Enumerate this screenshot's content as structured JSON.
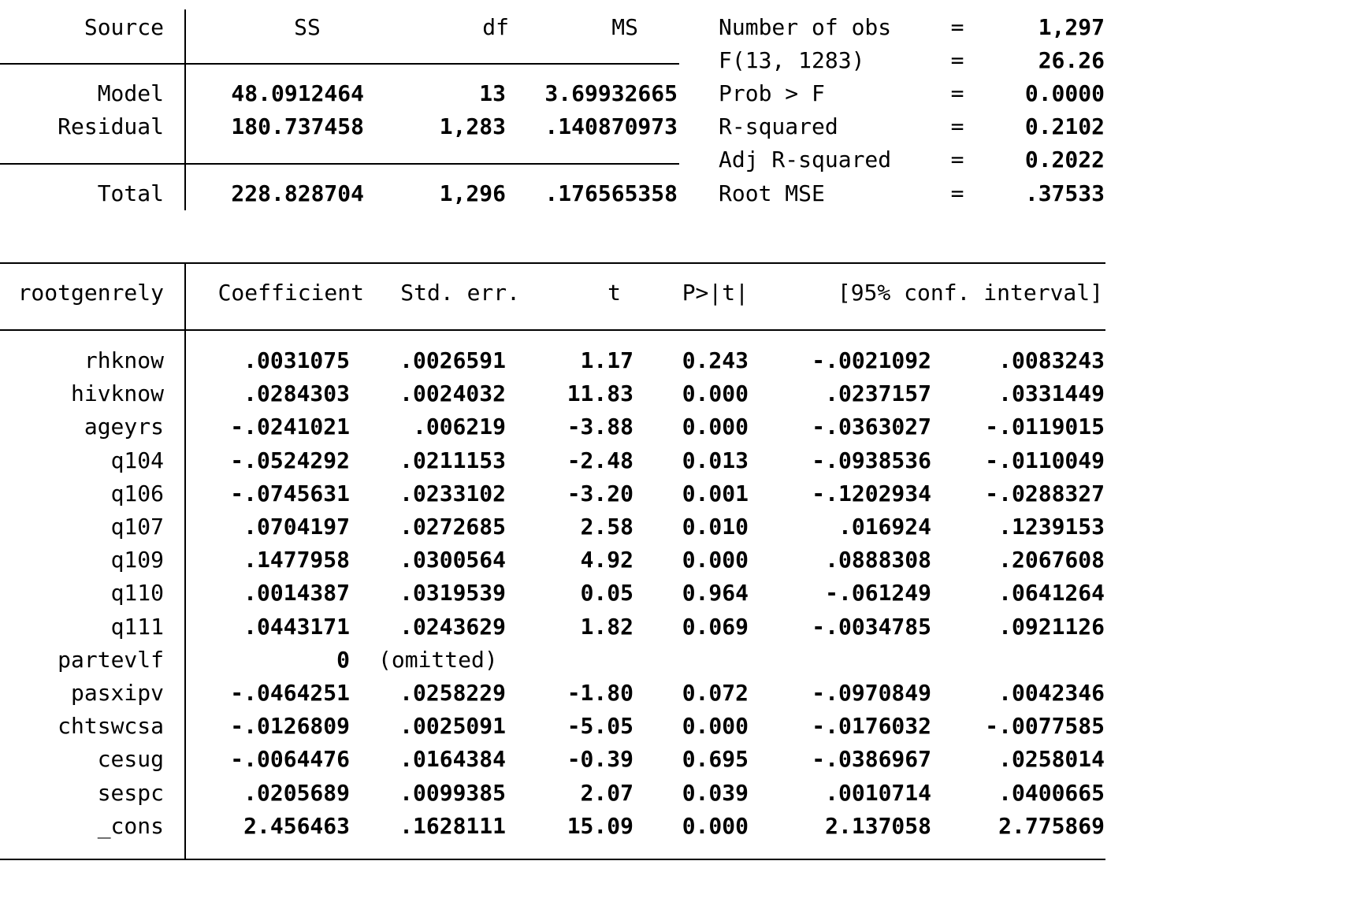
{
  "anova": {
    "headers": {
      "source": "Source",
      "ss": "SS",
      "df": "df",
      "ms": "MS"
    },
    "rows": [
      {
        "source": "Model",
        "ss": "48.0912464",
        "df": "13",
        "ms": "3.69932665"
      },
      {
        "source": "Residual",
        "ss": "180.737458",
        "df": "1,283",
        "ms": ".140870973"
      },
      {
        "source": "Total",
        "ss": "228.828704",
        "df": "1,296",
        "ms": ".176565358"
      }
    ]
  },
  "stats": [
    {
      "label": "Number of obs",
      "eq": "=",
      "value": "1,297"
    },
    {
      "label": "F(13, 1283)",
      "eq": "=",
      "value": "26.26"
    },
    {
      "label": "Prob > F",
      "eq": "=",
      "value": "0.0000"
    },
    {
      "label": "R-squared",
      "eq": "=",
      "value": "0.2102"
    },
    {
      "label": "Adj R-squared",
      "eq": "=",
      "value": "0.2022"
    },
    {
      "label": "Root MSE",
      "eq": "=",
      "value": ".37533"
    }
  ],
  "coef": {
    "headers": {
      "var": "rootgenrely",
      "coef": "Coefficient",
      "se": "Std. err.",
      "t": "t",
      "p": "P>|t|",
      "ci": "[95% conf. interval]"
    },
    "rows": [
      {
        "var": "rhknow",
        "coef": ".0031075",
        "se": ".0026591",
        "t": "1.17",
        "p": "0.243",
        "lo": "-.0021092",
        "hi": ".0083243"
      },
      {
        "var": "hivknow",
        "coef": ".0284303",
        "se": ".0024032",
        "t": "11.83",
        "p": "0.000",
        "lo": ".0237157",
        "hi": ".0331449"
      },
      {
        "var": "ageyrs",
        "coef": "-.0241021",
        "se": ".006219",
        "t": "-3.88",
        "p": "0.000",
        "lo": "-.0363027",
        "hi": "-.0119015"
      },
      {
        "var": "q104",
        "coef": "-.0524292",
        "se": ".0211153",
        "t": "-2.48",
        "p": "0.013",
        "lo": "-.0938536",
        "hi": "-.0110049"
      },
      {
        "var": "q106",
        "coef": "-.0745631",
        "se": ".0233102",
        "t": "-3.20",
        "p": "0.001",
        "lo": "-.1202934",
        "hi": "-.0288327"
      },
      {
        "var": "q107",
        "coef": ".0704197",
        "se": ".0272685",
        "t": "2.58",
        "p": "0.010",
        "lo": ".016924",
        "hi": ".1239153"
      },
      {
        "var": "q109",
        "coef": ".1477958",
        "se": ".0300564",
        "t": "4.92",
        "p": "0.000",
        "lo": ".0888308",
        "hi": ".2067608"
      },
      {
        "var": "q110",
        "coef": ".0014387",
        "se": ".0319539",
        "t": "0.05",
        "p": "0.964",
        "lo": "-.061249",
        "hi": ".0641264"
      },
      {
        "var": "q111",
        "coef": ".0443171",
        "se": ".0243629",
        "t": "1.82",
        "p": "0.069",
        "lo": "-.0034785",
        "hi": ".0921126"
      },
      {
        "var": "partevlf",
        "coef": "0",
        "se": "(omitted)",
        "t": "",
        "p": "",
        "lo": "",
        "hi": ""
      },
      {
        "var": "pasxipv",
        "coef": "-.0464251",
        "se": ".0258229",
        "t": "-1.80",
        "p": "0.072",
        "lo": "-.0970849",
        "hi": ".0042346"
      },
      {
        "var": "chtswcsa",
        "coef": "-.0126809",
        "se": ".0025091",
        "t": "-5.05",
        "p": "0.000",
        "lo": "-.0176032",
        "hi": "-.0077585"
      },
      {
        "var": "cesug",
        "coef": "-.0064476",
        "se": ".0164384",
        "t": "-0.39",
        "p": "0.695",
        "lo": "-.0386967",
        "hi": ".0258014"
      },
      {
        "var": "sespc",
        "coef": ".0205689",
        "se": ".0099385",
        "t": "2.07",
        "p": "0.039",
        "lo": ".0010714",
        "hi": ".0400665"
      },
      {
        "var": "_cons",
        "coef": "2.456463",
        "se": ".1628111",
        "t": "15.09",
        "p": "0.000",
        "lo": "2.137058",
        "hi": "2.775869"
      }
    ]
  }
}
